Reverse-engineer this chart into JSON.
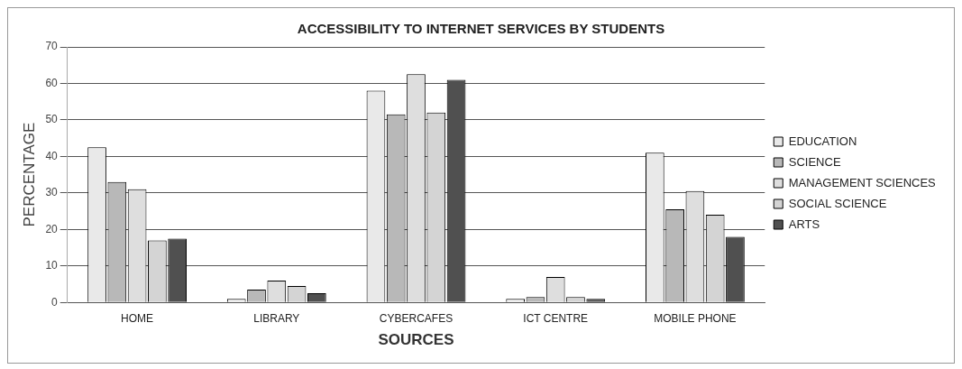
{
  "chart_data": {
    "type": "bar",
    "title": "ACCESSIBILITY TO INTERNET SERVICES BY STUDENTS",
    "xlabel": "SOURCES",
    "ylabel": "PERCENTAGE",
    "categories": [
      "HOME",
      "LIBRARY",
      "CYBERCAFES",
      "ICT CENTRE",
      "MOBILE PHONE"
    ],
    "series": [
      {
        "name": "EDUCATION",
        "color": "#e9e9e9",
        "values": [
          42.5,
          1,
          58,
          1,
          41
        ]
      },
      {
        "name": "SCIENCE",
        "color": "#b8b8b8",
        "values": [
          33,
          3.5,
          51.5,
          1.5,
          25.5
        ]
      },
      {
        "name": "MANAGEMENT SCIENCES",
        "color": "#dedede",
        "values": [
          31,
          6,
          62.5,
          7,
          30.5
        ]
      },
      {
        "name": "SOCIAL SCIENCE",
        "color": "#d4d4d4",
        "values": [
          17,
          4.5,
          52,
          1.5,
          24
        ]
      },
      {
        "name": "ARTS",
        "color": "#505050",
        "values": [
          17.5,
          2.5,
          61,
          1,
          18
        ]
      }
    ],
    "ylim": [
      0,
      70
    ],
    "yticks": [
      0,
      10,
      20,
      30,
      40,
      50,
      60,
      70
    ],
    "grid": "y",
    "legend": "right"
  }
}
